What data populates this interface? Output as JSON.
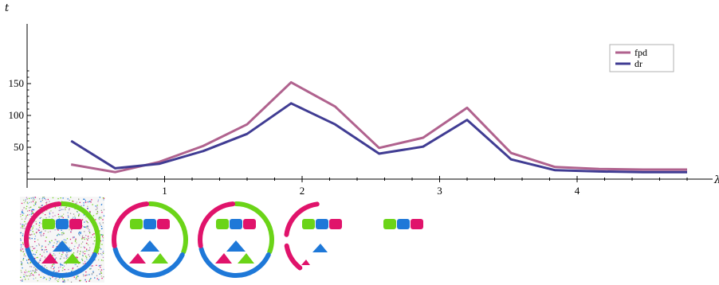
{
  "chart_data": {
    "type": "line",
    "xlabel": "λ",
    "ylabel": "t",
    "xlim": [
      0,
      4.85
    ],
    "ylim": [
      0,
      170
    ],
    "x_ticks": [
      "1",
      "2",
      "3",
      "4"
    ],
    "y_ticks": [
      "50",
      "100",
      "150"
    ],
    "grid": false,
    "legend_position": "top-right",
    "x": [
      0.32,
      0.64,
      0.96,
      1.28,
      1.6,
      1.92,
      2.24,
      2.56,
      2.88,
      3.2,
      3.52,
      3.84,
      4.16,
      4.48,
      4.8
    ],
    "series": [
      {
        "name": "fpd",
        "color": "#b0628e",
        "values": [
          23,
          11,
          27,
          52,
          86,
          152,
          114,
          49,
          65,
          112,
          41,
          19,
          16,
          15,
          15
        ]
      },
      {
        "name": "dr",
        "color": "#403c93",
        "values": [
          60,
          17,
          24,
          44,
          71,
          119,
          86,
          40,
          51,
          93,
          31,
          14,
          12,
          11,
          11
        ]
      }
    ]
  },
  "thumbnails": [
    {
      "name": "thumbnail-noisy",
      "noise": true,
      "ring": "full"
    },
    {
      "name": "thumbnail-clean-1",
      "noise": false,
      "ring": "full"
    },
    {
      "name": "thumbnail-clean-2",
      "noise": false,
      "ring": "full"
    },
    {
      "name": "thumbnail-partial",
      "noise": false,
      "ring": "partial"
    },
    {
      "name": "thumbnail-bar-only",
      "noise": false,
      "ring": "none"
    }
  ],
  "colors": {
    "magenta": "#e0136b",
    "green": "#6bd418",
    "blue": "#1e78d8"
  }
}
